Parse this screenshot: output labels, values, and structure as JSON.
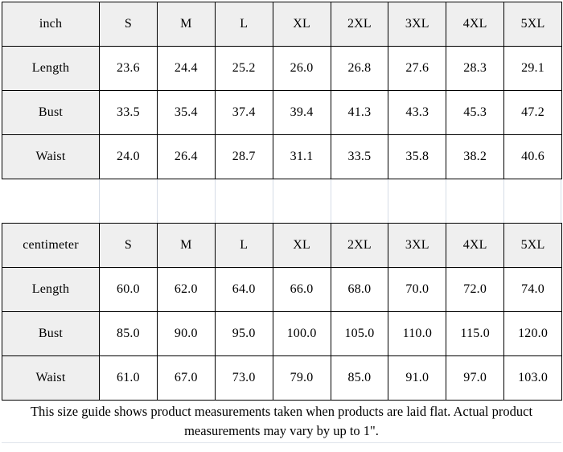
{
  "sizes": [
    "S",
    "M",
    "L",
    "XL",
    "2XL",
    "3XL",
    "4XL",
    "5XL"
  ],
  "inch_table": {
    "unit_label": "inch",
    "rows": [
      {
        "label": "Length",
        "values": [
          "23.6",
          "24.4",
          "25.2",
          "26.0",
          "26.8",
          "27.6",
          "28.3",
          "29.1"
        ]
      },
      {
        "label": "Bust",
        "values": [
          "33.5",
          "35.4",
          "37.4",
          "39.4",
          "41.3",
          "43.3",
          "45.3",
          "47.2"
        ]
      },
      {
        "label": "Waist",
        "values": [
          "24.0",
          "26.4",
          "28.7",
          "31.1",
          "33.5",
          "35.8",
          "38.2",
          "40.6"
        ]
      }
    ]
  },
  "cm_table": {
    "unit_label": "centimeter",
    "rows": [
      {
        "label": "Length",
        "values": [
          "60.0",
          "62.0",
          "64.0",
          "66.0",
          "68.0",
          "70.0",
          "72.0",
          "74.0"
        ]
      },
      {
        "label": "Bust",
        "values": [
          "85.0",
          "90.0",
          "95.0",
          "100.0",
          "105.0",
          "110.0",
          "115.0",
          "120.0"
        ]
      },
      {
        "label": "Waist",
        "values": [
          "61.0",
          "67.0",
          "73.0",
          "79.0",
          "85.0",
          "91.0",
          "97.0",
          "103.0"
        ]
      }
    ]
  },
  "footer": {
    "line1": "This size guide shows product measurements taken when products are laid flat. Actual product",
    "line2": "measurements may vary by up to 1\"."
  },
  "colors": {
    "header_fill": "#efefef",
    "border": "#000000",
    "gap_gridline": "#d5dce6"
  }
}
